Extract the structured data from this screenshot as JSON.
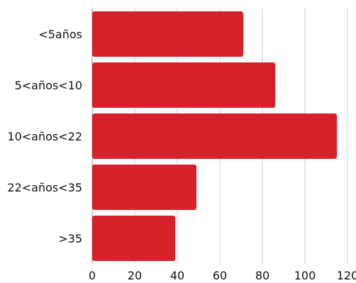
{
  "chart_data": {
    "type": "bar",
    "orientation": "horizontal",
    "categories": [
      "<5años",
      "5<años<10",
      "10<años<22",
      "22<años<35",
      ">35"
    ],
    "values": [
      71,
      86,
      115,
      49,
      39
    ],
    "xlim": [
      0,
      120
    ],
    "xticks": [
      0,
      20,
      40,
      60,
      80,
      100,
      120
    ],
    "grid": "vertical",
    "bar_color": "#d7212a",
    "legend": "none"
  }
}
